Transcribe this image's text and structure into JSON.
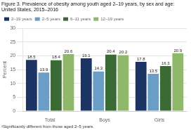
{
  "chart_data": {
    "type": "bar",
    "title": "Figure 3. Prevalence of obesity among youth aged 2–19 years, by sex and age:",
    "subtitle": "United States, 2015–2016",
    "annotations": [
      "¹Significantly different from those aged 2–5 years."
    ],
    "categories": [
      "Total",
      "Boys",
      "Girls"
    ],
    "series": [
      {
        "name": "2–19 years",
        "color": "#1b3464",
        "values": [
          18.5,
          19.1,
          17.8
        ]
      },
      {
        "name": "2–5 years",
        "color": "#6a9ec7",
        "values": [
          13.9,
          14.3,
          13.5
        ]
      },
      {
        "name": "6–11 years",
        "color": "#3a6b35",
        "values": [
          18.4,
          20.4,
          16.3
        ]
      },
      {
        "name": "12–19 years",
        "color": "#8fb86a",
        "values": [
          20.6,
          20.2,
          20.9
        ]
      }
    ],
    "y_label": "Percent",
    "ylim": [
      0,
      30
    ],
    "yticks": [
      0,
      5,
      10,
      15,
      20,
      25,
      30
    ],
    "grid": true,
    "legend": "upper left",
    "data_labels": true
  }
}
